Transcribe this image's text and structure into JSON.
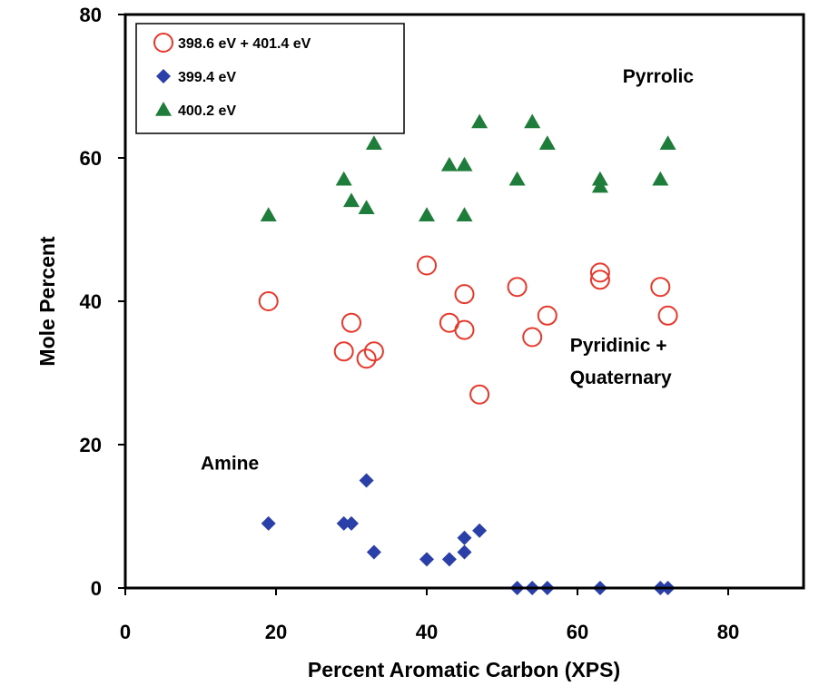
{
  "chart_data": {
    "type": "scatter",
    "title": "",
    "xlabel": "Percent Aromatic Carbon (XPS)",
    "ylabel": "Mole Percent",
    "xlim": [
      0,
      90
    ],
    "ylim": [
      0,
      80
    ],
    "xticks": [
      "0",
      "20",
      "40",
      "60",
      "80"
    ],
    "yticks": [
      "0",
      "20",
      "40",
      "60",
      "80"
    ],
    "grid": false,
    "legend_position": "top-left",
    "series": [
      {
        "name": "398.6 eV + 401.4 eV",
        "marker": "open-circle",
        "color": "#e8382c",
        "points": [
          [
            19,
            40
          ],
          [
            29,
            33
          ],
          [
            30,
            37
          ],
          [
            32,
            32
          ],
          [
            33,
            33
          ],
          [
            40,
            45
          ],
          [
            43,
            37
          ],
          [
            45,
            41
          ],
          [
            45,
            36
          ],
          [
            47,
            27
          ],
          [
            52,
            42
          ],
          [
            54,
            35
          ],
          [
            56,
            38
          ],
          [
            63,
            44
          ],
          [
            63,
            43
          ],
          [
            71,
            42
          ],
          [
            72,
            38
          ]
        ]
      },
      {
        "name": "399.4 eV",
        "marker": "diamond",
        "color": "#2b3fa8",
        "points": [
          [
            19,
            9
          ],
          [
            29,
            9
          ],
          [
            30,
            9
          ],
          [
            32,
            15
          ],
          [
            33,
            5
          ],
          [
            40,
            4
          ],
          [
            43,
            4
          ],
          [
            45,
            7
          ],
          [
            45,
            5
          ],
          [
            47,
            8
          ],
          [
            52,
            0
          ],
          [
            54,
            0
          ],
          [
            56,
            0
          ],
          [
            63,
            0
          ],
          [
            71,
            0
          ],
          [
            72,
            0
          ]
        ]
      },
      {
        "name": "400.2 eV",
        "marker": "triangle",
        "color": "#1e7d3a",
        "points": [
          [
            19,
            52
          ],
          [
            29,
            57
          ],
          [
            30,
            54
          ],
          [
            32,
            53
          ],
          [
            33,
            62
          ],
          [
            40,
            52
          ],
          [
            43,
            59
          ],
          [
            45,
            59
          ],
          [
            45,
            52
          ],
          [
            47,
            65
          ],
          [
            52,
            57
          ],
          [
            54,
            65
          ],
          [
            56,
            62
          ],
          [
            63,
            57
          ],
          [
            63,
            56
          ],
          [
            71,
            57
          ],
          [
            72,
            62
          ]
        ]
      }
    ],
    "annotations": [
      {
        "text": "Pyrrolic",
        "x": 66,
        "y": 70.5
      },
      {
        "text": "Pyridinic +",
        "x": 59,
        "y": 33
      },
      {
        "text": "Quaternary",
        "x": 59,
        "y": 28.5
      },
      {
        "text": "Amine",
        "x": 10,
        "y": 16.5
      }
    ]
  }
}
